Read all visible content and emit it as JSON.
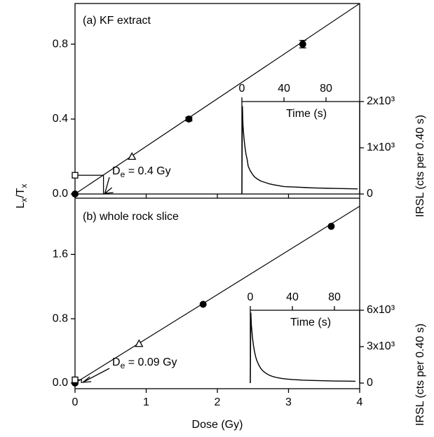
{
  "chart_data": [
    {
      "type": "scatter",
      "title": "(a) KF extract",
      "ylabel_parts": [
        "L",
        "x",
        "/T",
        "x"
      ],
      "xlim": [
        0,
        4
      ],
      "xticks": [
        0,
        1,
        2,
        3,
        4
      ],
      "ylim": [
        0,
        1.017
      ],
      "yticks": [
        {
          "value": 0,
          "label": "0.0"
        },
        {
          "value": 0.4,
          "label": "0.4"
        },
        {
          "value": 0.8,
          "label": "0.8"
        }
      ],
      "series": [
        {
          "marker": "line",
          "color": "#000000",
          "x": [
            0,
            4
          ],
          "values": [
            0,
            1.017
          ]
        },
        {
          "marker": "filled-circle",
          "color": "#000000",
          "x": [
            0,
            1.6,
            3.2
          ],
          "values": [
            0,
            0.4,
            0.8
          ],
          "errors": [
            0,
            0.01,
            0.02
          ]
        },
        {
          "marker": "open-triangle",
          "color": "#000000",
          "x": [
            0.8
          ],
          "values": [
            0.2
          ]
        },
        {
          "marker": "open-square",
          "color": "#000000",
          "x": [
            0
          ],
          "values": [
            0.1
          ]
        }
      ],
      "de": 0.4,
      "de_label": [
        "D",
        "e",
        " = 0.4 Gy"
      ]
    },
    {
      "type": "line",
      "xlabel": "Time (s)",
      "ylabel": "IRSL (cts per 0.40 s)",
      "xlim": [
        0,
        112
      ],
      "xticks": [
        0,
        40,
        80
      ],
      "ylim": [
        0,
        2000
      ],
      "yticks": [
        0,
        {
          "value": 1000,
          "label": "1x10³"
        },
        {
          "value": 2000,
          "label": "2x10³"
        }
      ],
      "color": "#000000",
      "x": [
        0,
        0.5,
        1,
        2,
        3,
        4,
        5,
        6,
        8,
        10,
        12,
        15,
        18,
        22,
        26,
        30,
        35,
        40,
        50,
        60,
        70,
        80,
        90,
        100,
        110
      ],
      "values": [
        0,
        1900,
        1500,
        1200,
        1000,
        850,
        750,
        600,
        500,
        430,
        370,
        320,
        280,
        250,
        220,
        200,
        180,
        160,
        150,
        140,
        130,
        125,
        120,
        115,
        110
      ]
    },
    {
      "type": "scatter",
      "title": "(b) whole rock slice",
      "xlabel": "Dose (Gy)",
      "xlim": [
        0,
        4
      ],
      "xticks": [
        0,
        1,
        2,
        3,
        4
      ],
      "ylim": [
        -0.07,
        2.3
      ],
      "yticks": [
        {
          "value": 0,
          "label": "0.0"
        },
        {
          "value": 0.8,
          "label": "0.8"
        },
        {
          "value": 1.6,
          "label": "1.6"
        }
      ],
      "series": [
        {
          "marker": "line",
          "color": "#000000",
          "x": [
            0,
            4
          ],
          "values": [
            0,
            2.2
          ]
        },
        {
          "marker": "filled-circle",
          "color": "#000000",
          "x": [
            0,
            1.8,
            3.6
          ],
          "values": [
            0,
            0.98,
            1.95
          ]
        },
        {
          "marker": "open-triangle",
          "color": "#000000",
          "x": [
            0.9
          ],
          "values": [
            0.49
          ]
        },
        {
          "marker": "open-square",
          "color": "#000000",
          "x": [
            0
          ],
          "values": [
            0.04
          ]
        }
      ],
      "de": 0.09,
      "de_label": [
        "D",
        "e",
        " = 0.09 Gy"
      ]
    },
    {
      "type": "line",
      "xlabel": "Time (s)",
      "ylabel": "IRSL (cts per 0.40 s)",
      "xlim": [
        0,
        104
      ],
      "xticks": [
        0,
        40,
        80
      ],
      "ylim": [
        0,
        6000
      ],
      "yticks": [
        0,
        {
          "value": 3000,
          "label": "3x10³"
        },
        {
          "value": 6000,
          "label": "6x10³"
        }
      ],
      "color": "#000000",
      "x": [
        0,
        0.5,
        1,
        2,
        3,
        4,
        5,
        6,
        8,
        10,
        12,
        15,
        18,
        22,
        26,
        30,
        35,
        40,
        50,
        60,
        70,
        80,
        90,
        100
      ],
      "values": [
        0,
        5800,
        4800,
        3800,
        3100,
        2600,
        2200,
        1900,
        1500,
        1200,
        1000,
        800,
        650,
        520,
        440,
        380,
        330,
        290,
        240,
        210,
        190,
        170,
        160,
        150
      ]
    }
  ]
}
